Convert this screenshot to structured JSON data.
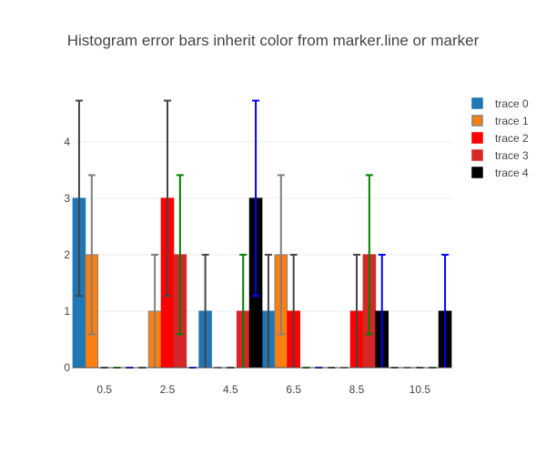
{
  "chart_data": {
    "type": "bar",
    "title": "Histogram error bars inherit color from marker.line or marker",
    "xlabel": "",
    "ylabel": "",
    "categories": [
      "0.5",
      "2.5",
      "4.5",
      "6.5",
      "8.5",
      "10.5"
    ],
    "category_centers": [
      0.5,
      2.5,
      4.5,
      6.5,
      8.5,
      10.5
    ],
    "bin_width": 2,
    "xlim": [
      -0.5,
      11.5
    ],
    "ylim": [
      0,
      4.9
    ],
    "yticks": [
      0,
      1,
      2,
      3,
      4
    ],
    "grid": true,
    "legend": "top-right",
    "series": [
      {
        "name": "trace 0",
        "fill": "#1f77b4",
        "line": "#1f77b4",
        "error_color": "#444444",
        "values": [
          3,
          0,
          1,
          1,
          0,
          0
        ],
        "errors": [
          1.73,
          0,
          1,
          1,
          0,
          0
        ]
      },
      {
        "name": "trace 1",
        "fill": "#ff7f0e",
        "line": "#7f7f7f",
        "error_color": "#7f7f7f",
        "values": [
          2,
          1,
          0,
          2,
          0,
          0
        ],
        "errors": [
          1.41,
          1,
          0,
          1.41,
          0,
          0
        ]
      },
      {
        "name": "trace 2",
        "fill": "#ff0000",
        "line": "#ff0000",
        "error_color": "#444444",
        "values": [
          0,
          3,
          0,
          1,
          1,
          0
        ],
        "errors": [
          0,
          1.73,
          0,
          1,
          1,
          0
        ]
      },
      {
        "name": "trace 3",
        "fill": "#d62728",
        "line": "#d62728",
        "error_color": "#008000",
        "values": [
          0,
          2,
          1,
          0,
          2,
          0
        ],
        "errors": [
          0,
          1.41,
          1,
          0,
          1.41,
          0
        ]
      },
      {
        "name": "trace 4",
        "fill": "#000000",
        "line": "#000000",
        "error_color": "#0000ff",
        "values": [
          0,
          0,
          3,
          0,
          1,
          1
        ],
        "errors": [
          0,
          0,
          1.73,
          0,
          1,
          1
        ]
      }
    ]
  }
}
